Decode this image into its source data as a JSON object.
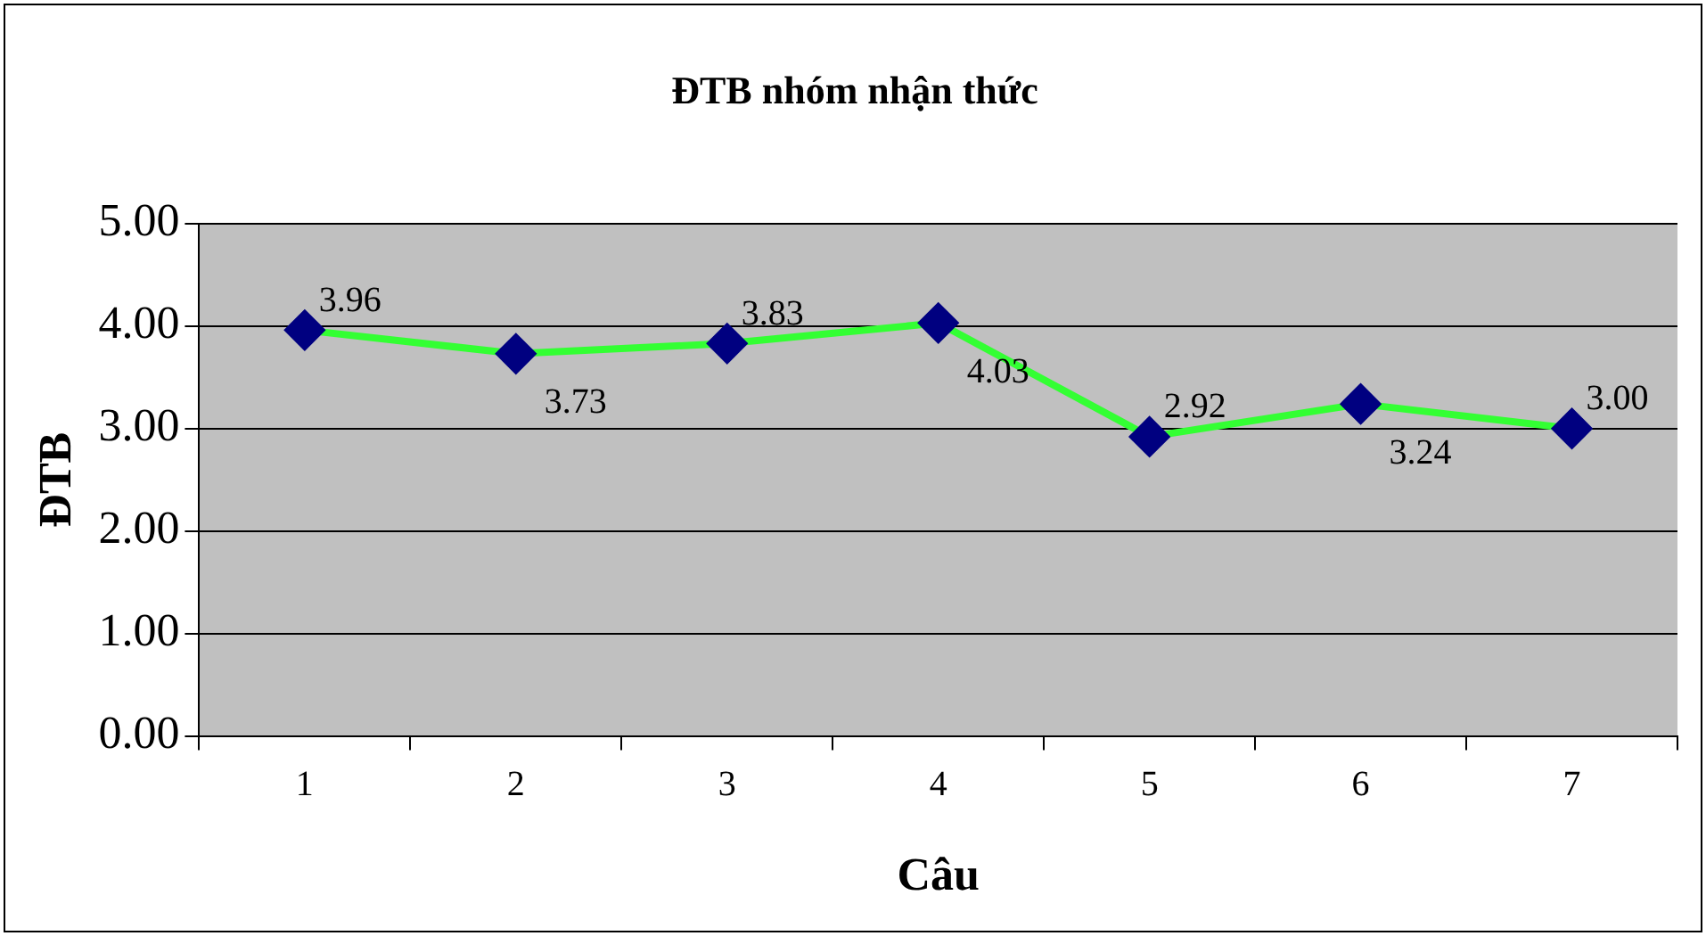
{
  "chart_data": {
    "type": "line",
    "title": "ĐTB nhóm nhận thức",
    "xlabel": "Câu",
    "ylabel": "ĐTB",
    "categories": [
      "1",
      "2",
      "3",
      "4",
      "5",
      "6",
      "7"
    ],
    "series": [
      {
        "color": "#33ff33",
        "values": [
          3.96,
          3.73,
          3.83,
          4.03,
          2.92,
          3.24,
          3.0
        ],
        "value_labels": [
          "3.96",
          "3.73",
          "3.83",
          "4.03",
          "2.92",
          "3.24",
          "3.00"
        ]
      }
    ],
    "ylim": [
      0,
      5
    ],
    "yticks": [
      {
        "value": 0,
        "label": "0.00"
      },
      {
        "value": 1,
        "label": "1.00"
      },
      {
        "value": 2,
        "label": "2.00"
      },
      {
        "value": 3,
        "label": "3.00"
      },
      {
        "value": 4,
        "label": "4.00"
      },
      {
        "value": 5,
        "label": "5.00"
      }
    ],
    "grid": "y",
    "legend": false,
    "marker": "diamond",
    "line_style": "solid"
  }
}
